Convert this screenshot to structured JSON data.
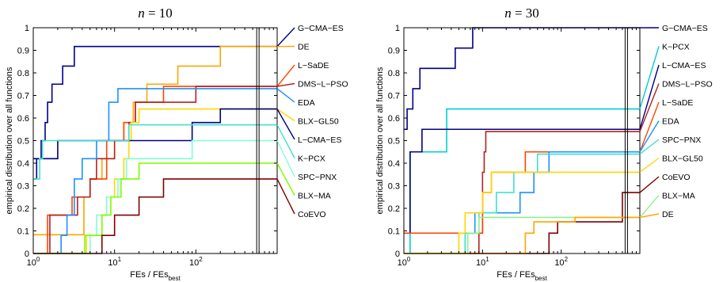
{
  "chart_data": [
    {
      "type": "line",
      "title": "n = 10",
      "title_var": "n",
      "title_rest": " = 10",
      "xlabel_main": "FEs / FEs",
      "xlabel_sub": "best",
      "ylabel": "empirical distribution over all functions",
      "x_scale": "log",
      "xlim": [
        1,
        1000
      ],
      "ylim": [
        0,
        1
      ],
      "x_tick_labels": [
        {
          "base": "10",
          "exp": "0",
          "v": 1
        },
        {
          "base": "10",
          "exp": "1",
          "v": 10
        },
        {
          "base": "10",
          "exp": "2",
          "v": 100
        }
      ],
      "y_ticks": [
        0,
        0.1,
        0.2,
        0.3,
        0.4,
        0.5,
        0.6,
        0.7,
        0.8,
        0.9,
        1
      ],
      "y_tick_labels": [
        "0",
        "0.1",
        "0.2",
        "0.3",
        "0.4",
        "0.5",
        "0.6",
        "0.7",
        "0.8",
        "0.9",
        "1"
      ],
      "vline_x": 560,
      "series": [
        {
          "name": "G−CMA−ES",
          "color": "#00008b",
          "end": 0.917,
          "steps": [
            [
              1,
              0.33
            ],
            [
              1.1,
              0.42
            ],
            [
              1.25,
              0.5
            ],
            [
              1.4,
              0.58
            ],
            [
              1.5,
              0.67
            ],
            [
              1.7,
              0.75
            ],
            [
              2.3,
              0.83
            ],
            [
              3.2,
              0.917
            ]
          ]
        },
        {
          "name": "DE",
          "color": "#ffa500",
          "end": 0.917,
          "steps": [
            [
              1,
              0.083
            ],
            [
              2.5,
              0.083
            ],
            [
              4.2,
              0.25
            ],
            [
              5,
              0.33
            ],
            [
              7,
              0.42
            ],
            [
              10,
              0.5
            ],
            [
              13,
              0.58
            ],
            [
              17,
              0.67
            ],
            [
              25,
              0.75
            ],
            [
              60,
              0.83
            ],
            [
              200,
              0.917
            ]
          ]
        },
        {
          "name": "L−SaDE",
          "color": "#ff4500",
          "end": 0.74,
          "steps": [
            [
              1,
              0
            ],
            [
              1.5,
              0.17
            ],
            [
              3,
              0.25
            ],
            [
              5,
              0.33
            ],
            [
              8,
              0.5
            ],
            [
              13,
              0.58
            ],
            [
              18,
              0.67
            ],
            [
              40,
              0.74
            ]
          ]
        },
        {
          "name": "DMS−L−PSO",
          "color": "#b22222",
          "end": 0.74,
          "steps": [
            [
              1,
              0
            ],
            [
              1.6,
              0.17
            ],
            [
              3.5,
              0.25
            ],
            [
              5,
              0.33
            ],
            [
              6,
              0.42
            ],
            [
              10,
              0.5
            ],
            [
              15,
              0.58
            ],
            [
              18,
              0.67
            ],
            [
              100,
              0.74
            ]
          ]
        },
        {
          "name": "EDA",
          "color": "#1e90ff",
          "end": 0.73,
          "steps": [
            [
              1,
              0
            ],
            [
              2.2,
              0.08
            ],
            [
              2.6,
              0.17
            ],
            [
              3.2,
              0.33
            ],
            [
              4,
              0.42
            ],
            [
              6,
              0.5
            ],
            [
              8.5,
              0.67
            ],
            [
              11,
              0.73
            ]
          ]
        },
        {
          "name": "BLX−GL50",
          "color": "#ffd700",
          "end": 0.64,
          "steps": [
            [
              1,
              0
            ],
            [
              4.5,
              0.08
            ],
            [
              7,
              0.17
            ],
            [
              8,
              0.25
            ],
            [
              10,
              0.33
            ],
            [
              13,
              0.42
            ],
            [
              15,
              0.5
            ],
            [
              16,
              0.58
            ],
            [
              20,
              0.64
            ]
          ]
        },
        {
          "name": "L−CMA−ES",
          "color": "#000080",
          "end": 0.64,
          "steps": [
            [
              1,
              0.42
            ],
            [
              2,
              0.5
            ],
            [
              90,
              0.58
            ],
            [
              200,
              0.64
            ]
          ]
        },
        {
          "name": "K−PCX",
          "color": "#40e0d0",
          "end": 0.57,
          "steps": [
            [
              1,
              0.33
            ],
            [
              1.2,
              0.42
            ],
            [
              1.3,
              0.5
            ],
            [
              15,
              0.57
            ]
          ]
        },
        {
          "name": "SPC−PNX",
          "color": "#7fffd4",
          "end": 0.5,
          "steps": [
            [
              1,
              0
            ],
            [
              5,
              0.08
            ],
            [
              6,
              0.17
            ],
            [
              8,
              0.25
            ],
            [
              11,
              0.33
            ],
            [
              14,
              0.42
            ],
            [
              90,
              0.5
            ]
          ]
        },
        {
          "name": "BLX−MA",
          "color": "#7cfc00",
          "end": 0.4,
          "steps": [
            [
              1,
              0
            ],
            [
              4.3,
              0.08
            ],
            [
              7,
              0.17
            ],
            [
              9,
              0.25
            ],
            [
              12,
              0.33
            ],
            [
              20,
              0.4
            ]
          ]
        },
        {
          "name": "CoEVO",
          "color": "#800000",
          "end": 0.33,
          "steps": [
            [
              1,
              0
            ],
            [
              7,
              0.08
            ],
            [
              10,
              0.17
            ],
            [
              20,
              0.25
            ],
            [
              40,
              0.33
            ]
          ]
        }
      ]
    },
    {
      "type": "line",
      "title": "n = 30",
      "title_var": "n",
      "title_rest": " = 30",
      "xlabel_main": "FEs / FEs",
      "xlabel_sub": "best",
      "ylabel": "empirical distribution over all functions",
      "x_scale": "log",
      "xlim": [
        1,
        1000
      ],
      "ylim": [
        0,
        1
      ],
      "x_tick_labels": [
        {
          "base": "10",
          "exp": "0",
          "v": 1
        },
        {
          "base": "10",
          "exp": "1",
          "v": 10
        },
        {
          "base": "10",
          "exp": "2",
          "v": 100
        }
      ],
      "y_ticks": [
        0,
        0.1,
        0.2,
        0.3,
        0.4,
        0.5,
        0.6,
        0.7,
        0.8,
        0.9,
        1
      ],
      "y_tick_labels": [
        "0",
        "0.1",
        "0.2",
        "0.3",
        "0.4",
        "0.5",
        "0.6",
        "0.7",
        "0.8",
        "0.9",
        "1"
      ],
      "vline_x": 650,
      "series": [
        {
          "name": "G−CMA−ES",
          "color": "#00008b",
          "end": 1.0,
          "steps": [
            [
              1,
              0.55
            ],
            [
              1.1,
              0.64
            ],
            [
              1.3,
              0.73
            ],
            [
              1.6,
              0.82
            ],
            [
              4.5,
              0.91
            ],
            [
              7.5,
              1.0
            ]
          ]
        },
        {
          "name": "K−PCX",
          "color": "#00ced1",
          "end": 0.64,
          "steps": [
            [
              1,
              0.0
            ],
            [
              1.2,
              0.45
            ],
            [
              3.5,
              0.64
            ]
          ]
        },
        {
          "name": "L−CMA−ES",
          "color": "#000080",
          "end": 0.55,
          "steps": [
            [
              1,
              0.09
            ],
            [
              1.2,
              0.45
            ],
            [
              1.7,
              0.55
            ]
          ]
        },
        {
          "name": "DMS−L−PSO",
          "color": "#b22222",
          "end": 0.54,
          "steps": [
            [
              1,
              0.0
            ],
            [
              9,
              0.09
            ],
            [
              10,
              0.36
            ],
            [
              10.5,
              0.45
            ],
            [
              11,
              0.54
            ]
          ]
        },
        {
          "name": "L−SaDE",
          "color": "#ff4500",
          "end": 0.45,
          "steps": [
            [
              1,
              0.09
            ],
            [
              10,
              0.27
            ],
            [
              13,
              0.36
            ],
            [
              35,
              0.45
            ]
          ]
        },
        {
          "name": "EDA",
          "color": "#1e90ff",
          "end": 0.45,
          "steps": [
            [
              1,
              0
            ],
            [
              6,
              0.09
            ],
            [
              8,
              0.18
            ],
            [
              30,
              0.27
            ],
            [
              45,
              0.36
            ],
            [
              70,
              0.45
            ]
          ]
        },
        {
          "name": "SPC−PNX",
          "color": "#40e0d0",
          "end": 0.44,
          "steps": [
            [
              1,
              0
            ],
            [
              6,
              0.09
            ],
            [
              9,
              0.18
            ],
            [
              15,
              0.27
            ],
            [
              25,
              0.36
            ],
            [
              50,
              0.44
            ]
          ]
        },
        {
          "name": "BLX−GL50",
          "color": "#ffd700",
          "end": 0.36,
          "steps": [
            [
              1,
              0
            ],
            [
              5,
              0.09
            ],
            [
              6,
              0.18
            ],
            [
              10,
              0.27
            ],
            [
              13,
              0.36
            ]
          ]
        },
        {
          "name": "CoEVO",
          "color": "#800000",
          "end": 0.27,
          "steps": [
            [
              1,
              0
            ],
            [
              70,
              0.09
            ],
            [
              90,
              0.14
            ],
            [
              600,
              0.27
            ]
          ]
        },
        {
          "name": "BLX−MA",
          "color": "#90ee90",
          "end": 0.16,
          "steps": [
            [
              1,
              0
            ],
            [
              6.5,
              0.09
            ],
            [
              9,
              0.16
            ]
          ]
        },
        {
          "name": "DE",
          "color": "#ffa500",
          "end": 0.16,
          "steps": [
            [
              1,
              0
            ],
            [
              35,
              0.09
            ],
            [
              45,
              0.14
            ],
            [
              150,
              0.16
            ]
          ]
        }
      ]
    }
  ]
}
